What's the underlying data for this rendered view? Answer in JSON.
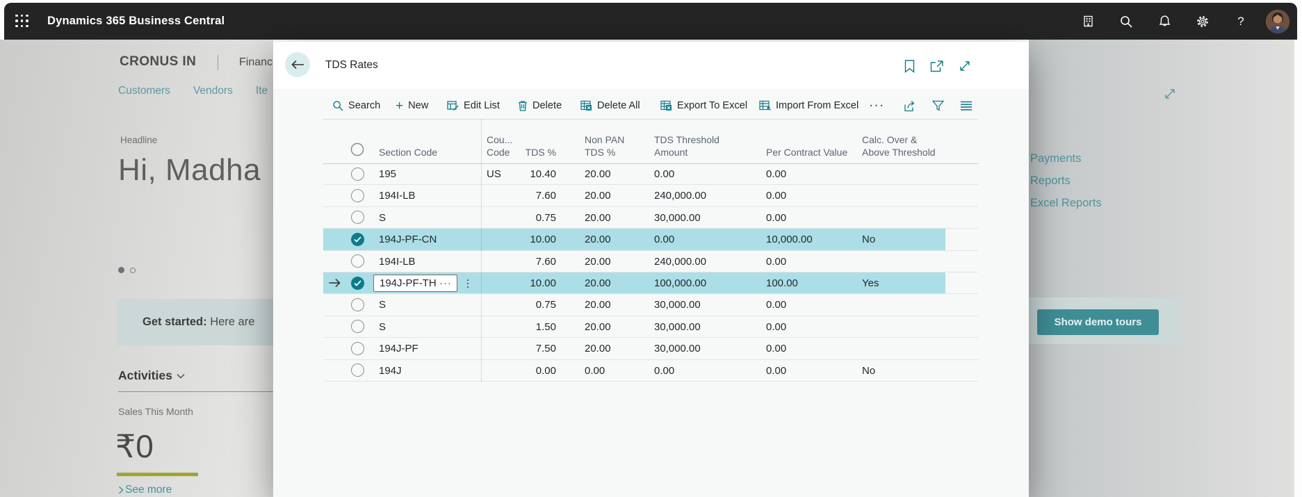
{
  "app_bar": {
    "title": "Dynamics 365 Business Central",
    "icons": [
      "company-switcher",
      "search",
      "notifications",
      "settings",
      "help",
      "avatar"
    ]
  },
  "background": {
    "company": "CRONUS IN",
    "breadcrumb_partial": "Financ",
    "nav_links": [
      "Customers",
      "Vendors",
      "Ite"
    ],
    "headline_label": "Headline",
    "headline_text": "Hi, Madha",
    "get_started_bold": "Get started:",
    "get_started_rest": " Here are",
    "activities_label": "Activities",
    "sales_label": "Sales This Month",
    "sales_value": "₹0",
    "see_more": "See more",
    "right_links": [
      "Payments",
      "Reports",
      "Excel Reports"
    ],
    "demo_button": "Show demo tours"
  },
  "dialog": {
    "title": "TDS Rates",
    "toolbar": {
      "search": "Search",
      "new": "New",
      "edit_list": "Edit List",
      "delete": "Delete",
      "delete_all": "Delete All",
      "export_excel": "Export To Excel",
      "import_excel": "Import From Excel",
      "more": "···"
    },
    "table": {
      "columns": {
        "section": "Section Code",
        "country_l1": "Cou...",
        "country_l2": "Code",
        "tds": "TDS %",
        "nonpan_l1": "Non PAN",
        "nonpan_l2": "TDS %",
        "threshold_l1": "TDS Threshold",
        "threshold_l2": "Amount",
        "per_contract": "Per Contract Value",
        "calc_l1": "Calc. Over &",
        "calc_l2": "Above Threshold"
      },
      "rows": [
        {
          "section": "195",
          "country": "US",
          "tds": "10.40",
          "nonpan": "20.00",
          "threshold": "0.00",
          "percontract": "0.00",
          "calc": "",
          "selected": false,
          "editing": false
        },
        {
          "section": "194I-LB",
          "country": "",
          "tds": "7.60",
          "nonpan": "20.00",
          "threshold": "240,000.00",
          "percontract": "0.00",
          "calc": "",
          "selected": false,
          "editing": false
        },
        {
          "section": "S",
          "country": "",
          "tds": "0.75",
          "nonpan": "20.00",
          "threshold": "30,000.00",
          "percontract": "0.00",
          "calc": "",
          "selected": false,
          "editing": false
        },
        {
          "section": "194J-PF-CN",
          "country": "",
          "tds": "10.00",
          "nonpan": "20.00",
          "threshold": "0.00",
          "percontract": "10,000.00",
          "calc": "No",
          "selected": true,
          "editing": false
        },
        {
          "section": "194I-LB",
          "country": "",
          "tds": "7.60",
          "nonpan": "20.00",
          "threshold": "240,000.00",
          "percontract": "0.00",
          "calc": "",
          "selected": false,
          "editing": false
        },
        {
          "section": "194J-PF-TH",
          "country": "",
          "tds": "10.00",
          "nonpan": "20.00",
          "threshold": "100,000.00",
          "percontract": "100.00",
          "calc": "Yes",
          "selected": true,
          "editing": true
        },
        {
          "section": "S",
          "country": "",
          "tds": "0.75",
          "nonpan": "20.00",
          "threshold": "30,000.00",
          "percontract": "0.00",
          "calc": "",
          "selected": false,
          "editing": false
        },
        {
          "section": "S",
          "country": "",
          "tds": "1.50",
          "nonpan": "20.00",
          "threshold": "30,000.00",
          "percontract": "0.00",
          "calc": "",
          "selected": false,
          "editing": false
        },
        {
          "section": "194J-PF",
          "country": "",
          "tds": "7.50",
          "nonpan": "20.00",
          "threshold": "30,000.00",
          "percontract": "0.00",
          "calc": "",
          "selected": false,
          "editing": false
        },
        {
          "section": "194J",
          "country": "",
          "tds": "0.00",
          "nonpan": "0.00",
          "threshold": "0.00",
          "percontract": "0.00",
          "calc": "No",
          "selected": false,
          "editing": false
        }
      ]
    }
  },
  "colors": {
    "accent_teal": "#0e7c8a",
    "row_highlight": "#abdee6",
    "topbar_bg": "#242424",
    "demo_button_bg": "#3f8e96",
    "olive_bar": "#a1a52e"
  }
}
